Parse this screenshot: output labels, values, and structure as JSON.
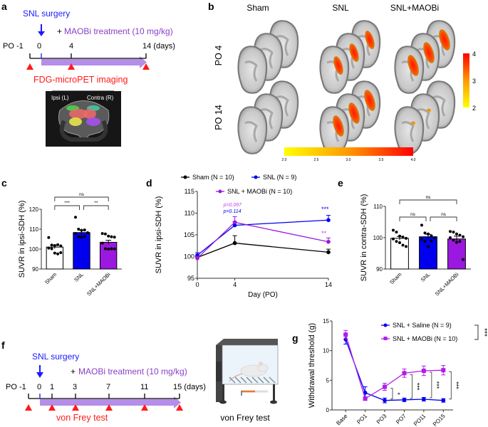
{
  "panels": {
    "a": {
      "label": "a",
      "surgery": "SNL surgery",
      "treatment_plus": "+",
      "treatment": "MAOBi treatment (10 mg/kg)",
      "timeline_prefix": "PO -1",
      "ticks": [
        "0",
        "4",
        "14 (days)"
      ],
      "imaging": "FDG-microPET imaging",
      "ipsi": "Ipsi (L)",
      "contra": "Contra (R)"
    },
    "b": {
      "label": "b",
      "columns": [
        "Sham",
        "SNL",
        "SNL+MAOBi"
      ],
      "rows": [
        "PO 4",
        "PO 14"
      ],
      "colorbar_v_ticks": [
        "4",
        "3",
        "2"
      ],
      "colorbar_h_ticks": [
        "2.0",
        "2.5",
        "3.0",
        "3.5",
        "4.0"
      ],
      "colormap": [
        "#ffff00",
        "#ff9900",
        "#ff0000"
      ]
    },
    "f": {
      "label": "f",
      "surgery": "SNL surgery",
      "treatment_plus": "+",
      "treatment": "MAOBi treatment (10 mg/kg)",
      "timeline_prefix": "PO -1",
      "ticks": [
        "0",
        "1",
        "3",
        "7",
        "11",
        "15 (days)"
      ],
      "test": "von Frey test",
      "illustration_caption": "von Frey test"
    }
  },
  "colors": {
    "sham": "#ffffff",
    "snl": "#0000ee",
    "maobi": "#9b18e0",
    "arrow_purple": "#b48ee8",
    "red": "#ff1a1a",
    "blue_text": "#1a1aff",
    "purple_text": "#8a3fc8"
  },
  "chart_data": [
    {
      "id": "c",
      "label": "c",
      "type": "bar",
      "ylabel": "SUVR in ipsi-SDH (%)",
      "categories": [
        "Sham",
        "SNL",
        "SNL+MAOBi"
      ],
      "values": [
        101.0,
        108.3,
        103.4
      ],
      "sem": [
        0.8,
        1.2,
        1.0
      ],
      "points": [
        [
          105.8,
          102.0,
          101.8,
          102.2,
          101.6,
          100.5,
          100.2,
          98.0,
          97.6,
          98.2
        ],
        [
          116.0,
          110.0,
          109.4,
          109.6,
          108.2,
          107.8,
          106.2,
          106.0,
          106.4
        ],
        [
          107.8,
          107.6,
          106.5,
          106.2,
          106.0,
          103.0,
          100.2,
          100.0,
          100.2,
          100.1
        ]
      ],
      "ylim": [
        90,
        120
      ],
      "yticks": [
        "90",
        "100",
        "110",
        "120"
      ],
      "annotations": [
        {
          "from": 0,
          "to": 2,
          "text": "ns"
        },
        {
          "from": 0,
          "to": 1,
          "text": "***"
        },
        {
          "from": 1,
          "to": 2,
          "text": "**"
        }
      ]
    },
    {
      "id": "d",
      "label": "d",
      "type": "line",
      "xlabel": "Day (PO)",
      "ylabel": "SUVR in ipsi-SDH (%)",
      "x": [
        0,
        4,
        14
      ],
      "xticks": [
        "0",
        "4",
        "14"
      ],
      "ylim": [
        95,
        115
      ],
      "yticks": [
        "95",
        "100",
        "105",
        "110",
        "115"
      ],
      "series": [
        {
          "name": "Sham (N = 10)",
          "values": [
            99.8,
            103.1,
            101.0
          ],
          "sem": [
            0.4,
            1.7,
            0.7
          ],
          "color": "#000000"
        },
        {
          "name": "SNL (N = 9)",
          "values": [
            100.3,
            107.2,
            108.4
          ],
          "sem": [
            0.6,
            0.8,
            1.1
          ],
          "color": "#0000ee"
        },
        {
          "name": "SNL + MAOBi (N = 10)",
          "values": [
            99.6,
            107.9,
            103.4
          ],
          "sem": [
            0.5,
            1.3,
            0.9
          ],
          "color": "#9b18e0"
        }
      ],
      "annotations": [
        {
          "text": "p=0.097",
          "color": "#c040e8"
        },
        {
          "text": "p=0.114",
          "color": "#0000ee"
        },
        {
          "text": "***",
          "color": "#0000ee"
        },
        {
          "text": "**",
          "color": "#c040e8"
        }
      ]
    },
    {
      "id": "e",
      "label": "e",
      "type": "bar",
      "ylabel": "SUVR in contra-SDH (%)",
      "categories": [
        "Sham",
        "SNL",
        "SNL+MAOBi"
      ],
      "values": [
        99.8,
        100.3,
        99.6
      ],
      "sem": [
        0.6,
        0.8,
        0.9
      ],
      "points": [
        [
          102.4,
          101.8,
          100.5,
          100.2,
          99.8,
          99.6,
          98.8,
          98.4,
          97.6,
          97.2
        ],
        [
          104.0,
          101.5,
          101.2,
          100.6,
          100.0,
          99.5,
          98.8,
          97.2,
          99.0
        ],
        [
          102.0,
          101.8,
          101.2,
          100.8,
          100.3,
          100.0,
          99.2,
          98.5,
          98.8,
          93.0
        ]
      ],
      "ylim": [
        90,
        110
      ],
      "yticks": [
        "90",
        "100",
        "110"
      ],
      "annotations": [
        {
          "from": 0,
          "to": 2,
          "text": "ns"
        },
        {
          "from": 0,
          "to": 1,
          "text": "ns"
        },
        {
          "from": 1,
          "to": 2,
          "text": "ns"
        }
      ]
    },
    {
      "id": "g",
      "label": "g",
      "type": "line",
      "ylabel": "Withdrawal threshold (g)",
      "categories": [
        "Base",
        "PO1",
        "PO3",
        "PO7",
        "PO11",
        "PO15"
      ],
      "ylim": [
        0,
        15
      ],
      "yticks": [
        "0",
        "5",
        "10",
        "15"
      ],
      "series": [
        {
          "name": "SNL + Saline (N = 9)",
          "values": [
            11.9,
            2.9,
            1.6,
            1.7,
            1.8,
            1.6
          ],
          "sem": [
            0.8,
            1.0,
            0.4,
            0.3,
            0.3,
            0.3
          ],
          "color": "#0000ee",
          "marker": "circle"
        },
        {
          "name": "SNL + MAOBi (N = 10)",
          "values": [
            12.7,
            1.9,
            3.9,
            6.2,
            6.6,
            6.7
          ],
          "sem": [
            0.7,
            0.3,
            0.6,
            0.7,
            0.8,
            0.8
          ],
          "color": "#b01ee8",
          "marker": "square"
        }
      ],
      "annotations": [
        {
          "text": "***",
          "target": "legend"
        },
        {
          "text": "*",
          "category": "PO3"
        },
        {
          "text": "***",
          "category": "PO7"
        },
        {
          "text": "***",
          "category": "PO11"
        },
        {
          "text": "***",
          "category": "PO15"
        }
      ]
    }
  ]
}
